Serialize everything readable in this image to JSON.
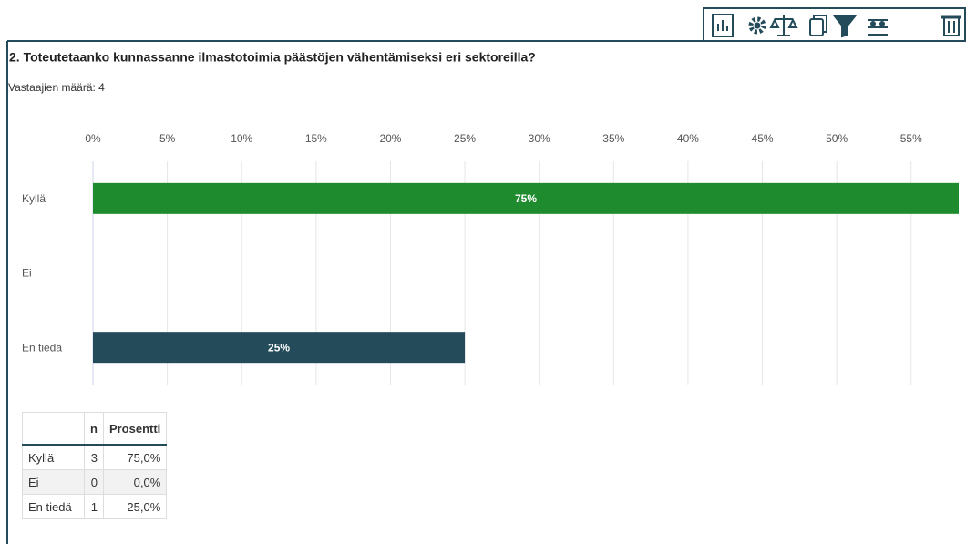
{
  "chart_data": {
    "type": "hbar",
    "title": "2. Toteutetaanko kunnassanne ilmastotoimia päästöjen vähentämiseksi eri sektoreilla?",
    "subtitle": "Vastaajien määrä: 4",
    "categories": [
      "Kyllä",
      "Ei",
      "En tiedä"
    ],
    "values": [
      75,
      0,
      25
    ],
    "value_labels": [
      "75%",
      null,
      "25%"
    ],
    "colors": [
      "#1e8c2e",
      "#1e8c2e",
      "#234b59"
    ],
    "xlim": [
      0,
      58.2
    ],
    "xticks": [
      {
        "value": 0,
        "label": "0%"
      },
      {
        "value": 5,
        "label": "5%"
      },
      {
        "value": 10,
        "label": "10%"
      },
      {
        "value": 15,
        "label": "15%"
      },
      {
        "value": 20,
        "label": "20%"
      },
      {
        "value": 25,
        "label": "25%"
      },
      {
        "value": 30,
        "label": "30%"
      },
      {
        "value": 35,
        "label": "35%"
      },
      {
        "value": 40,
        "label": "40%"
      },
      {
        "value": 45,
        "label": "45%"
      },
      {
        "value": 50,
        "label": "50%"
      },
      {
        "value": 55,
        "label": "55%"
      }
    ],
    "grid": true
  },
  "table": {
    "columns": [
      "n",
      "Prosentti"
    ],
    "rows": [
      [
        "Kyllä",
        "3",
        "75,0%"
      ],
      [
        "Ei",
        "0",
        "0,0%"
      ],
      [
        "En tiedä",
        "1",
        "25,0%"
      ]
    ]
  }
}
